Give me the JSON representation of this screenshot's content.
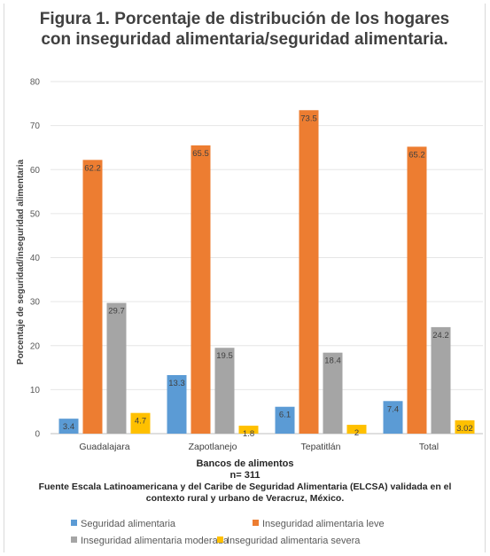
{
  "title": "Figura 1. Porcentaje de distribución de los hogares con inseguridad alimentaria/seguridad alimentaria.",
  "xlabel": "Bancos de alimentos",
  "n_label": "n= 311",
  "source": "Fuente Escala Latinoamericana y del Caribe de Seguridad Alimentaria (ELCSA) validada en el contexto rural y urbano de Veracruz, México.",
  "chart_data": {
    "type": "bar",
    "title": "Figura 1. Porcentaje de distribución de los hogares con inseguridad alimentaria/seguridad alimentaria.",
    "xlabel": "Bancos de alimentos",
    "ylabel": "Porcentaje de seguridad/inseguridad alimentaria",
    "ylim": [
      0,
      80
    ],
    "yticks": [
      0,
      10,
      20,
      30,
      40,
      50,
      60,
      70,
      80
    ],
    "grid": true,
    "legend_position": "bottom",
    "categories": [
      "Guadalajara",
      "Zapotlanejo",
      "Tepatitlán",
      "Total"
    ],
    "series": [
      {
        "name": "Seguridad alimentaria",
        "color": "#5b9bd5",
        "values": [
          3.4,
          13.3,
          6.1,
          7.4
        ],
        "labels": [
          "3.4",
          "13.3",
          "6.1",
          "7.4"
        ]
      },
      {
        "name": "Inseguridad alimentaria leve",
        "color": "#ed7d31",
        "values": [
          62.2,
          65.5,
          73.5,
          65.2
        ],
        "labels": [
          "62.2",
          "65.5",
          "73.5",
          "65.2"
        ]
      },
      {
        "name": "Inseguridad alimentaria moderada",
        "color": "#a5a5a5",
        "values": [
          29.7,
          19.5,
          18.4,
          24.2
        ],
        "labels": [
          "29.7",
          "19.5",
          "18.4",
          "24.2"
        ]
      },
      {
        "name": "Inseguridad alimentaria severa",
        "color": "#ffc000",
        "values": [
          4.7,
          1.8,
          2,
          3.02
        ],
        "labels": [
          "4.7",
          "1.8",
          "2",
          "3.02"
        ]
      }
    ]
  }
}
